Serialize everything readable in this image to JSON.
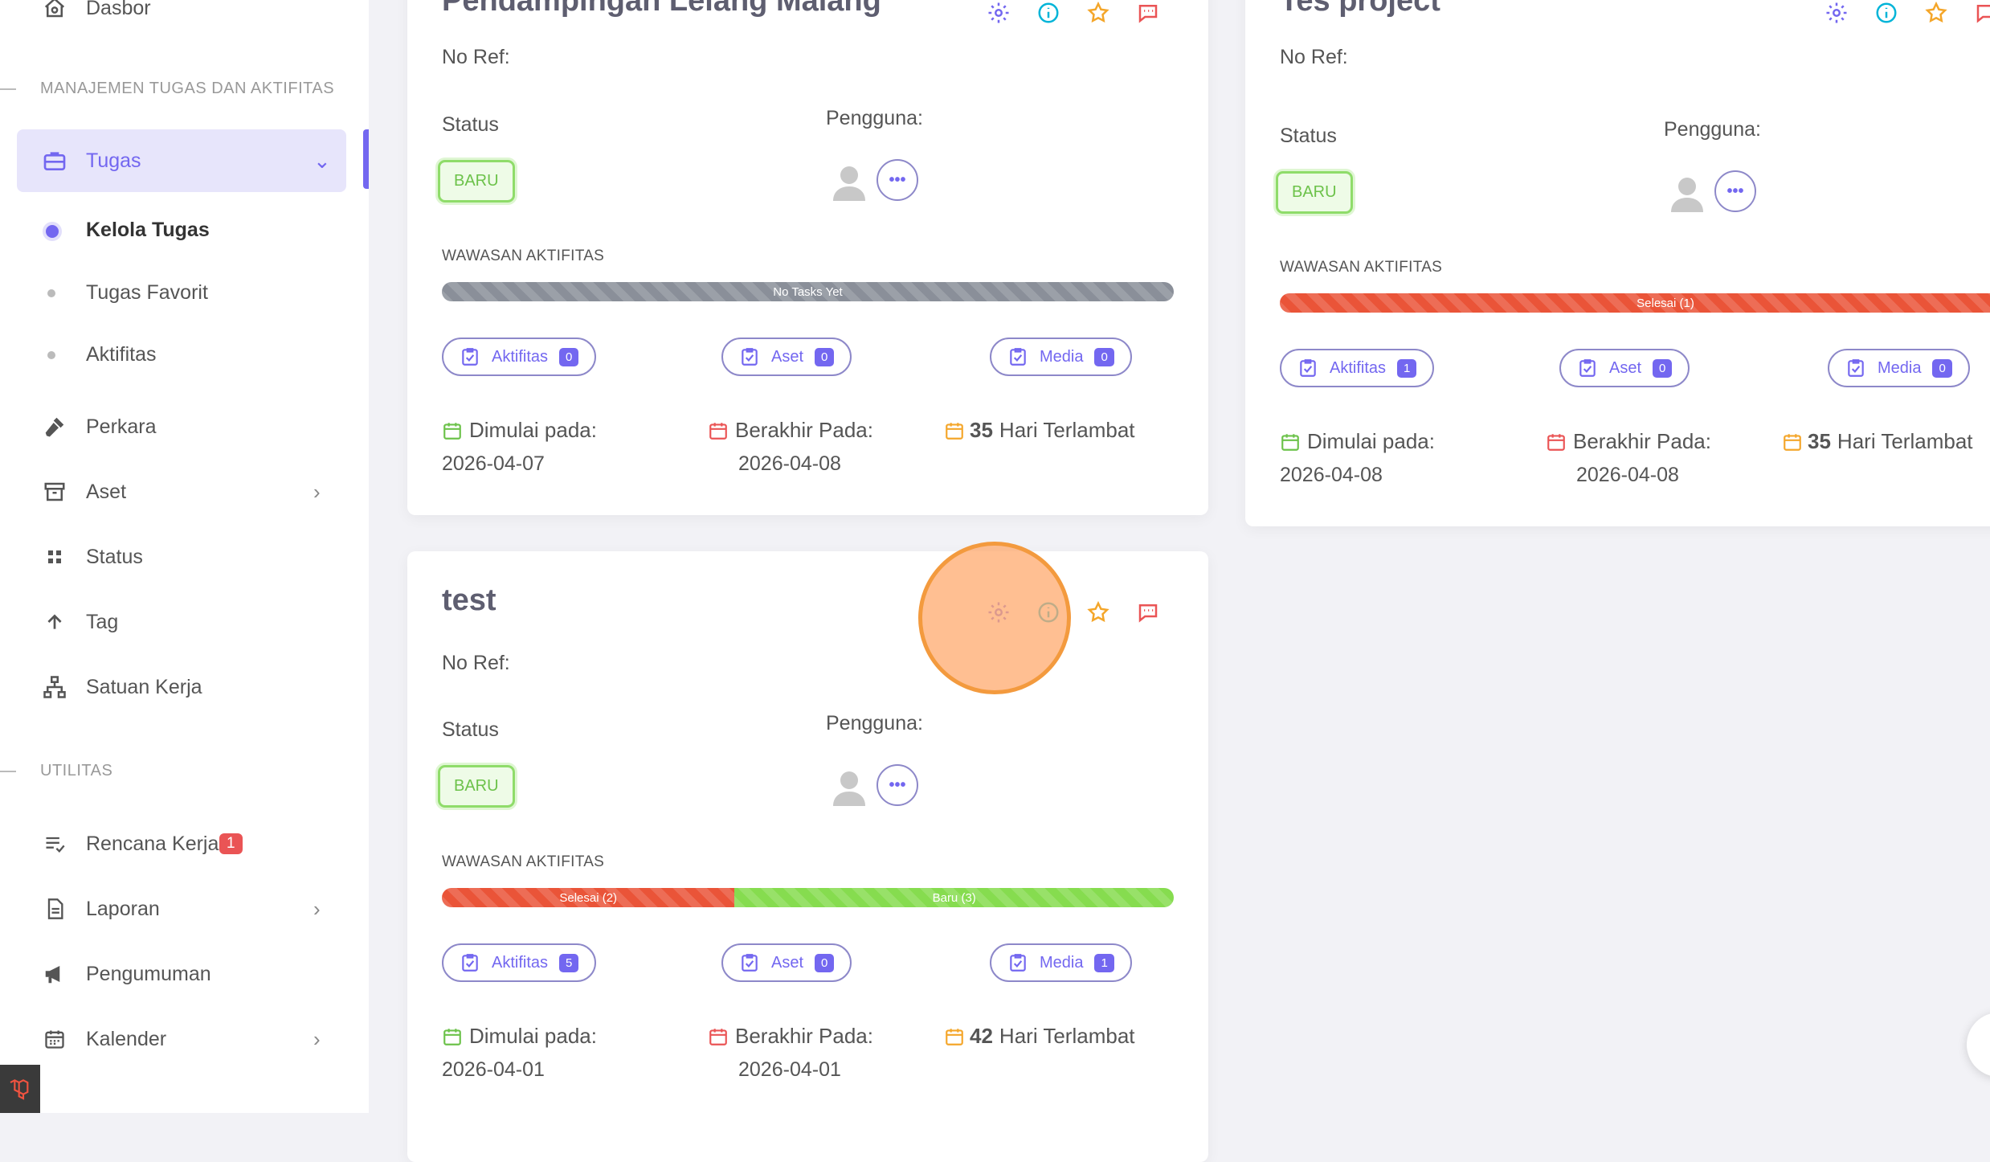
{
  "sidebar": {
    "dashboard_label": "Dasbor",
    "section_tasks": "MANAJEMEN TUGAS DAN AKTIFITAS",
    "tugas_label": "Tugas",
    "sub_items": [
      "Kelola Tugas",
      "Tugas Favorit",
      "Aktifitas"
    ],
    "perkara_label": "Perkara",
    "aset_label": "Aset",
    "status_label": "Status",
    "tag_label": "Tag",
    "satuan_kerja_label": "Satuan Kerja",
    "section_util": "UTILITAS",
    "rencana_kerja_label": "Rencana Kerja",
    "rencana_kerja_badge": "1",
    "laporan_label": "Laporan",
    "pengumuman_label": "Pengumuman",
    "kalender_label": "Kalender"
  },
  "cards": [
    {
      "title": "Pendampingan Lelang Malang",
      "ref_label": "No Ref:",
      "status_label": "Status",
      "status_value": "BARU",
      "users_label": "Pengguna:",
      "insight_label": "WAWASAN AKTIFITAS",
      "bar_segments": [
        {
          "label": "No Tasks Yet",
          "fraction": 1.0,
          "color": "#8a8f99"
        }
      ],
      "pills": [
        {
          "label": "Aktifitas",
          "count": "0"
        },
        {
          "label": "Aset",
          "count": "0"
        },
        {
          "label": "Media",
          "count": "0"
        }
      ],
      "start_label": "Dimulai pada:",
      "start_date": "2026-04-07",
      "end_label": "Berakhir Pada:",
      "end_date": "2026-04-08",
      "late_days": "35",
      "late_text": "Hari Terlambat"
    },
    {
      "title": "Tes project",
      "ref_label": "No Ref:",
      "status_label": "Status",
      "status_value": "BARU",
      "users_label": "Pengguna:",
      "insight_label": "WAWASAN AKTIFITAS",
      "bar_segments": [
        {
          "label": "Selesai (1)",
          "fraction": 1.0,
          "color": "#ea5438"
        }
      ],
      "pills": [
        {
          "label": "Aktifitas",
          "count": "1"
        },
        {
          "label": "Aset",
          "count": "0"
        },
        {
          "label": "Media",
          "count": "0"
        }
      ],
      "start_label": "Dimulai pada:",
      "start_date": "2026-04-08",
      "end_label": "Berakhir Pada:",
      "end_date": "2026-04-08",
      "late_days": "35",
      "late_text": "Hari Terlambat"
    },
    {
      "title": "test",
      "ref_label": "No Ref:",
      "status_label": "Status",
      "status_value": "BARU",
      "users_label": "Pengguna:",
      "insight_label": "WAWASAN AKTIFITAS",
      "bar_segments": [
        {
          "label": "Selesai (2)",
          "fraction": 0.4,
          "color": "#ea5438"
        },
        {
          "label": "Baru (3)",
          "fraction": 0.6,
          "color": "#86dc4f"
        }
      ],
      "pills": [
        {
          "label": "Aktifitas",
          "count": "5"
        },
        {
          "label": "Aset",
          "count": "0"
        },
        {
          "label": "Media",
          "count": "1"
        }
      ],
      "start_label": "Dimulai pada:",
      "start_date": "2026-04-01",
      "end_label": "Berakhir Pada:",
      "end_date": "2026-04-01",
      "late_days": "42",
      "late_text": "Hari Terlambat"
    }
  ],
  "colors": {
    "accent": "#7367f0",
    "danger": "#ea5455",
    "success": "#6cc24a",
    "warning": "#f4a62a"
  },
  "icons": [
    "home-icon",
    "briefcase-icon",
    "gavel-icon",
    "archive-icon",
    "grid-icon",
    "arrow-up-icon",
    "sitemap-icon",
    "list-check-icon",
    "file-icon",
    "megaphone-icon",
    "calendar-icon",
    "gear-icon",
    "info-icon",
    "star-icon",
    "chat-icon",
    "user-avatar-icon",
    "more-icon",
    "clipboard-check-icon"
  ]
}
